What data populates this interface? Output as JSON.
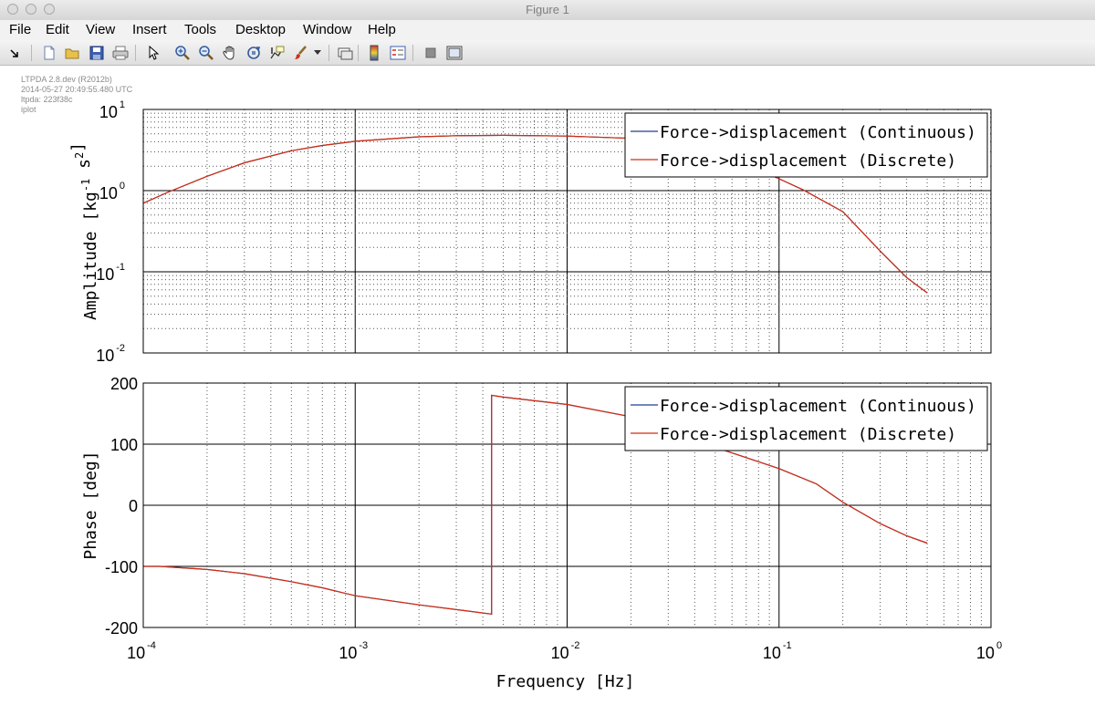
{
  "window": {
    "title": "Figure 1"
  },
  "menu": [
    "File",
    "Edit",
    "View",
    "Insert",
    "Tools",
    "Desktop",
    "Window",
    "Help"
  ],
  "toolbar_icons": [
    "dock-arrow-icon",
    "new-figure-icon",
    "open-file-icon",
    "save-icon",
    "print-icon",
    "pointer-icon",
    "zoom-in-icon",
    "zoom-out-icon",
    "pan-icon",
    "rotate-3d-icon",
    "data-cursor-icon",
    "brush-icon",
    "brush-dropdown-icon",
    "link-plot-icon",
    "colorbar-icon",
    "legend-icon",
    "hide-plot-tools-icon",
    "show-plot-tools-icon"
  ],
  "stamp": [
    "LTPDA 2.8.dev (R2012b)",
    "2014-05-27 20:49:55.480 UTC",
    "ltpda: 223f38c",
    "iplot"
  ],
  "colors": {
    "continuous": "#1f3f8f",
    "discrete": "#d42c10",
    "axes": "#000000",
    "grid": "#555555"
  },
  "chart_data": [
    {
      "type": "line",
      "xscale": "log",
      "yscale": "log",
      "xlim": [
        0.0001,
        1
      ],
      "ylim": [
        0.01,
        10
      ],
      "xticks": [
        "10^-4",
        "10^-3",
        "10^-2",
        "10^-1",
        "10^0"
      ],
      "yticks": [
        "10^-2",
        "10^-1",
        "10^0",
        "10^1"
      ],
      "ylabel": "Amplitude  [kg^-1 s^2]",
      "grid": true,
      "legend": "top-right",
      "series": [
        {
          "name": "Force->displacement (Continuous)",
          "x": [
            0.0001,
            0.00013,
            0.0002,
            0.0003,
            0.0005,
            0.0007,
            0.001,
            0.002,
            0.003,
            0.005,
            0.01,
            0.02,
            0.05,
            0.1,
            0.13,
            0.2,
            0.3,
            0.4,
            0.5
          ],
          "y": [
            0.7,
            0.95,
            1.5,
            2.2,
            3.1,
            3.6,
            4.05,
            4.6,
            4.75,
            4.8,
            4.7,
            4.4,
            3.0,
            1.4,
            1.02,
            0.55,
            0.18,
            0.085,
            0.055
          ]
        },
        {
          "name": "Force->displacement (Discrete)",
          "x": [
            0.0001,
            0.00013,
            0.0002,
            0.0003,
            0.0005,
            0.0007,
            0.001,
            0.002,
            0.003,
            0.005,
            0.01,
            0.02,
            0.05,
            0.1,
            0.13,
            0.2,
            0.3,
            0.4,
            0.5
          ],
          "y": [
            0.7,
            0.95,
            1.5,
            2.2,
            3.1,
            3.6,
            4.05,
            4.6,
            4.75,
            4.8,
            4.7,
            4.4,
            3.0,
            1.4,
            1.02,
            0.55,
            0.18,
            0.085,
            0.055
          ]
        }
      ]
    },
    {
      "type": "line",
      "xscale": "log",
      "yscale": "linear",
      "xlim": [
        0.0001,
        1
      ],
      "ylim": [
        -200,
        200
      ],
      "xticks": [
        "10^-4",
        "10^-3",
        "10^-2",
        "10^-1",
        "10^0"
      ],
      "yticks": [
        "-200",
        "-100",
        "0",
        "100",
        "200"
      ],
      "xlabel": "Frequency  [Hz]",
      "ylabel": "Phase  [deg]",
      "grid": true,
      "legend": "top-right",
      "series": [
        {
          "name": "Force->displacement (Continuous)",
          "x": [
            0.0001,
            0.00012,
            0.0002,
            0.0003,
            0.0005,
            0.0007,
            0.001,
            0.002,
            0.0044,
            0.0044,
            0.005,
            0.01,
            0.02,
            0.05,
            0.1,
            0.15,
            0.2,
            0.3,
            0.4,
            0.5
          ],
          "y": [
            -100,
            -100,
            -105,
            -112,
            -125,
            -135,
            -148,
            -163,
            -178,
            180,
            177,
            165,
            145,
            95,
            60,
            35,
            5,
            -30,
            -50,
            -62
          ]
        },
        {
          "name": "Force->displacement (Discrete)",
          "x": [
            0.0001,
            0.00012,
            0.0002,
            0.0003,
            0.0005,
            0.0007,
            0.001,
            0.002,
            0.0044,
            0.0044,
            0.005,
            0.01,
            0.02,
            0.05,
            0.1,
            0.15,
            0.2,
            0.3,
            0.4,
            0.5
          ],
          "y": [
            -100,
            -100,
            -105,
            -112,
            -125,
            -135,
            -148,
            -163,
            -178,
            180,
            177,
            165,
            145,
            95,
            60,
            35,
            5,
            -30,
            -50,
            -62
          ]
        }
      ]
    }
  ]
}
